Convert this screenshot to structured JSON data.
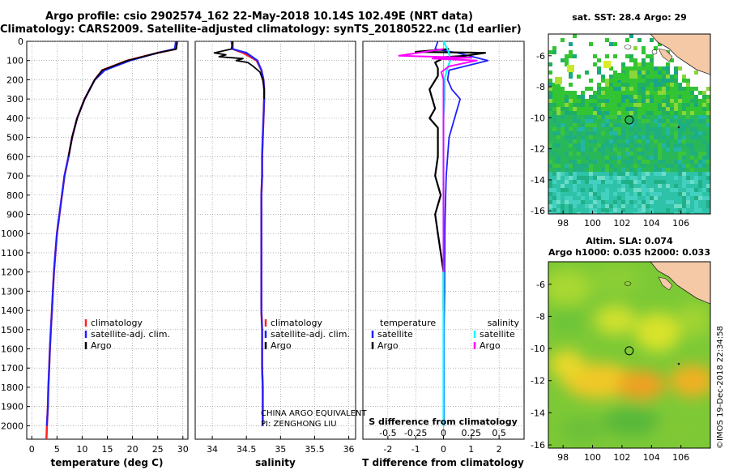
{
  "header": {
    "line1": "Argo profile: csio 2902574_162 22-May-2018 10.14S 102.49E (NRT data)",
    "line2": "Climatology: CARS2009. Satellite-adjusted climatology: synTS_20180522.nc (1d earlier)"
  },
  "credit": {
    "line1": "CHINA ARGO EQUIVALENT",
    "line2": "PI: ZENGHONG LIU"
  },
  "stamp": "©IMOS 19-Dec-2018 22:34:58",
  "colors": {
    "climatology": "#ff2020",
    "satellite": "#2020ff",
    "argo": "#000000",
    "sal_satellite": "#00ffff",
    "sal_argo": "#ff00ff"
  },
  "chart_data": [
    {
      "type": "line",
      "name": "temperature-profile",
      "xlabel": "temperature (deg C)",
      "ylabel": "",
      "xlim": [
        -1,
        31
      ],
      "ylim": [
        2070,
        0
      ],
      "x_ticks": [
        0,
        5,
        10,
        15,
        20,
        25,
        30
      ],
      "y_ticks": [
        0,
        100,
        200,
        300,
        400,
        500,
        600,
        700,
        800,
        900,
        1000,
        1100,
        1200,
        1300,
        1400,
        1500,
        1600,
        1700,
        1800,
        1900,
        2000
      ],
      "legend": [
        "climatology",
        "satellite-adj. clim.",
        "Argo"
      ],
      "series": [
        {
          "name": "climatology",
          "x": [
            28.8,
            28.6,
            25,
            19,
            14,
            12.5,
            11.5,
            10.5,
            9,
            8,
            7.3,
            6.5,
            6,
            5.5,
            5,
            4.7,
            4.4,
            4.2,
            4,
            3.8,
            3.6,
            3.45,
            3.3,
            3.2,
            3.1,
            3.0,
            2.95,
            2.9
          ],
          "y": [
            0,
            40,
            60,
            100,
            150,
            200,
            250,
            300,
            400,
            500,
            600,
            700,
            800,
            900,
            1000,
            1100,
            1200,
            1300,
            1400,
            1500,
            1600,
            1700,
            1800,
            1900,
            1950,
            2000,
            2040,
            2070
          ]
        },
        {
          "name": "satellite-adj. clim.",
          "x": [
            28.6,
            28.4,
            25,
            19.5,
            14.5,
            12.5,
            11.5,
            10.5,
            9,
            8,
            7.3,
            6.5,
            6,
            5.5,
            5,
            4.7,
            4.4,
            4.2,
            4,
            3.8,
            3.6,
            3.45,
            3.3,
            3.2,
            3.1,
            3.0
          ],
          "y": [
            0,
            40,
            60,
            100,
            150,
            200,
            250,
            300,
            400,
            500,
            600,
            700,
            800,
            900,
            1000,
            1100,
            1200,
            1300,
            1400,
            1500,
            1600,
            1700,
            1800,
            1900,
            1950,
            2000
          ]
        },
        {
          "name": "Argo",
          "x": [
            28.9,
            28.7,
            25,
            19,
            14,
            12.5,
            11.5,
            10.5,
            9,
            8,
            7.3
          ],
          "y": [
            0,
            40,
            60,
            100,
            150,
            200,
            250,
            300,
            400,
            500,
            600
          ]
        }
      ]
    },
    {
      "type": "line",
      "name": "salinity-profile",
      "xlabel": "salinity",
      "xlim": [
        33.75,
        36.1
      ],
      "ylim": [
        2070,
        0
      ],
      "x_ticks": [
        34,
        34.5,
        35,
        35.5,
        36
      ],
      "legend": [
        "climatology",
        "satellite-adj. clim.",
        "Argo"
      ],
      "series": [
        {
          "name": "climatology",
          "x": [
            34.3,
            34.3,
            34.45,
            34.65,
            34.72,
            34.75,
            34.76,
            34.76,
            34.75,
            34.74,
            34.73,
            34.73,
            34.72,
            34.72,
            34.72,
            34.72,
            34.72,
            34.72,
            34.72,
            34.73,
            34.73,
            34.73,
            34.74,
            34.74,
            34.74
          ],
          "y": [
            0,
            40,
            60,
            100,
            150,
            200,
            250,
            300,
            400,
            500,
            600,
            700,
            800,
            900,
            1000,
            1100,
            1200,
            1300,
            1400,
            1500,
            1600,
            1700,
            1800,
            1900,
            2000
          ]
        },
        {
          "name": "satellite-adj. clim.",
          "x": [
            34.28,
            34.3,
            34.5,
            34.66,
            34.72,
            34.75,
            34.76,
            34.76,
            34.75,
            34.74,
            34.73,
            34.73,
            34.72,
            34.72,
            34.72,
            34.72,
            34.72,
            34.72,
            34.72,
            34.73,
            34.73,
            34.73,
            34.74,
            34.74,
            34.74
          ],
          "y": [
            0,
            40,
            60,
            100,
            150,
            200,
            250,
            300,
            400,
            500,
            600,
            700,
            800,
            900,
            1000,
            1100,
            1200,
            1300,
            1400,
            1500,
            1600,
            1700,
            1800,
            1900,
            2000
          ]
        },
        {
          "name": "Argo",
          "x": [
            34.3,
            34.28,
            34.03,
            34.2,
            34.1,
            34.45,
            34.35,
            34.52,
            34.6,
            34.7,
            34.74,
            34.76,
            34.76
          ],
          "y": [
            0,
            40,
            60,
            70,
            80,
            90,
            100,
            110,
            130,
            160,
            200,
            250,
            300
          ]
        }
      ]
    },
    {
      "type": "line",
      "name": "difference-profile",
      "xlabel": "T difference from climatology",
      "xlabel2": "S difference from climatology",
      "xlim": [
        -2.9,
        2.9
      ],
      "ylim": [
        2070,
        0
      ],
      "x_ticks": [
        -2,
        -1,
        0,
        1,
        2
      ],
      "x2_ticks": [
        -0.5,
        -0.25,
        0,
        0.25,
        0.5
      ],
      "x2_tick_labels": [
        "-0.5",
        "-0.25",
        "0",
        "0.25",
        "0.5"
      ],
      "legend_left_title": "temperature",
      "legend_right_title": "salinity",
      "legend_left": [
        "satellite",
        "Argo"
      ],
      "legend_right": [
        "satellite",
        "Argo"
      ],
      "series": [
        {
          "name": "T satellite",
          "x": [
            -0.2,
            -0.3,
            0.5,
            1.6,
            0.2,
            0.15,
            0.3,
            0.6,
            0.4,
            0.2,
            0.15,
            0.1,
            0.08,
            0.06,
            0.05,
            0.05,
            0.04,
            0.04,
            0.03,
            0.02,
            0.02,
            0.02,
            0.02,
            0.02,
            0.02,
            0.02
          ],
          "y": [
            0,
            40,
            60,
            100,
            150,
            200,
            250,
            300,
            400,
            500,
            600,
            700,
            800,
            900,
            1000,
            1100,
            1200,
            1300,
            1400,
            1500,
            1600,
            1700,
            1800,
            1900,
            1950,
            2000
          ]
        },
        {
          "name": "T Argo",
          "x": [
            0.2,
            -1.0,
            1.5,
            0.8,
            -0.3,
            -0.1,
            -0.3,
            -0.2,
            -0.2,
            -0.5,
            -0.3,
            -0.5,
            -0.2,
            -0.2,
            -0.2,
            -0.3,
            -0.1,
            -0.3,
            -0.2,
            -0.1,
            0.0,
            0.0,
            0.0
          ],
          "y": [
            40,
            55,
            60,
            75,
            85,
            95,
            110,
            140,
            180,
            250,
            350,
            400,
            450,
            500,
            600,
            700,
            800,
            900,
            1000,
            1100,
            1200,
            1300,
            1400
          ]
        },
        {
          "name": "S satellite",
          "x": [
            0.0,
            0.05,
            0.06,
            0.03,
            0.01,
            0.01,
            0.0,
            0.0,
            0.0,
            0.0,
            0.0,
            0.0,
            0.0,
            0.0
          ],
          "y": [
            0,
            60,
            100,
            150,
            200,
            300,
            400,
            600,
            800,
            1000,
            1400,
            1600,
            1800,
            2000
          ]
        },
        {
          "name": "S Argo",
          "x": [
            0.0,
            -0.4,
            0.25,
            -0.1,
            0.3,
            0.05,
            -0.02,
            0.0,
            0.0,
            0.0,
            0.0,
            0.0,
            0.0,
            0.0
          ],
          "y": [
            40,
            75,
            85,
            90,
            100,
            130,
            160,
            200,
            300,
            400,
            600,
            800,
            1000,
            1200
          ]
        }
      ]
    },
    {
      "type": "heatmap",
      "name": "sst-map",
      "title": "sat. SST: 28.4 Argo: 29",
      "x_ticks": [
        98,
        100,
        102,
        104,
        106
      ],
      "y_ticks": [
        -6,
        -8,
        -10,
        -12,
        -14,
        -16
      ],
      "xlim": [
        97,
        108
      ],
      "ylim": [
        -16.2,
        -4.6
      ],
      "argo_position": {
        "lon": 102.49,
        "lat": -10.14
      }
    },
    {
      "type": "heatmap",
      "name": "sla-map",
      "title_line1": "Altim. SLA: 0.074",
      "title_line2": "Argo h1000: 0.035 h2000: 0.033",
      "x_ticks": [
        98,
        100,
        102,
        104,
        106
      ],
      "y_ticks": [
        -6,
        -8,
        -10,
        -12,
        -14,
        -16
      ],
      "xlim": [
        97,
        108
      ],
      "ylim": [
        -16.2,
        -4.6
      ],
      "argo_position": {
        "lon": 102.49,
        "lat": -10.14
      }
    }
  ]
}
